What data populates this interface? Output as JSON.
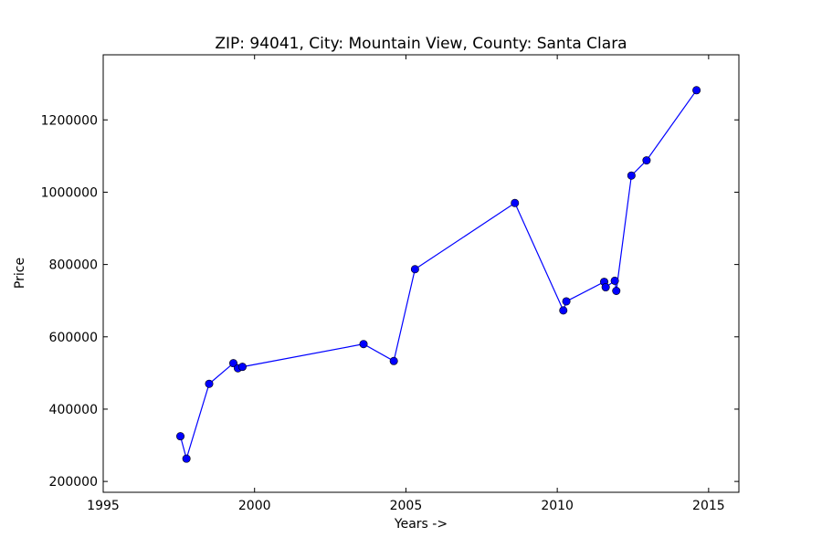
{
  "chart_data": {
    "type": "line",
    "title": "ZIP: 94041, City: Mountain View, County: Santa Clara",
    "xlabel": "Years ->",
    "ylabel": "Price",
    "xlim": [
      1995,
      2016
    ],
    "ylim": [
      170000,
      1380000
    ],
    "xticks": [
      1995,
      2000,
      2005,
      2010,
      2015
    ],
    "yticks": [
      200000,
      400000,
      600000,
      800000,
      1000000,
      1200000
    ],
    "grid": false,
    "marker": "circle",
    "color": "#0000ff",
    "series": [
      {
        "x": [
          1997.55,
          1997.75,
          1998.5,
          1999.3,
          1999.45,
          1999.6,
          2003.6,
          2004.6,
          2005.3,
          2008.6,
          2010.2,
          2010.3,
          2011.55,
          2011.6,
          2011.9,
          2011.95,
          2012.45,
          2012.95,
          2014.6
        ],
        "y": [
          325000,
          263000,
          470000,
          527000,
          513000,
          517000,
          580000,
          533000,
          787000,
          970000,
          673000,
          698000,
          752000,
          737000,
          755000,
          727000,
          1046000,
          1088000,
          1282000
        ]
      }
    ]
  }
}
